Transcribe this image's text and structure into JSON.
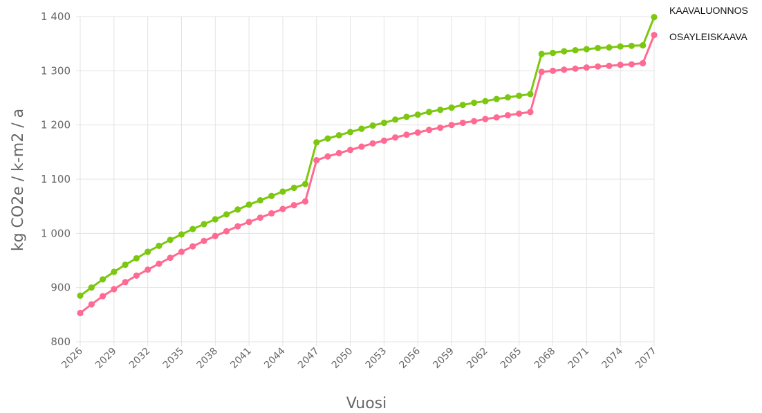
{
  "chart_data": {
    "type": "line",
    "title": "",
    "xlabel": "Vuosi",
    "ylabel": "kg CO2e / k-m2 / a",
    "x": [
      2026,
      2027,
      2028,
      2029,
      2030,
      2031,
      2032,
      2033,
      2034,
      2035,
      2036,
      2037,
      2038,
      2039,
      2040,
      2041,
      2042,
      2043,
      2044,
      2045,
      2046,
      2047,
      2048,
      2049,
      2050,
      2051,
      2052,
      2053,
      2054,
      2055,
      2056,
      2057,
      2058,
      2059,
      2060,
      2061,
      2062,
      2063,
      2064,
      2065,
      2066,
      2067,
      2068,
      2069,
      2070,
      2071,
      2072,
      2073,
      2074,
      2075,
      2076,
      2077
    ],
    "x_tick_labels": [
      "2026",
      "2029",
      "2032",
      "2035",
      "2038",
      "2041",
      "2044",
      "2047",
      "2050",
      "2053",
      "2056",
      "2059",
      "2062",
      "2065",
      "2068",
      "2071",
      "2074",
      "2077"
    ],
    "y_tick_labels": [
      "800",
      "900",
      "1 000",
      "1 100",
      "1 200",
      "1 300",
      "1 400"
    ],
    "ylim": [
      800,
      1400
    ],
    "grid": true,
    "legend_position": "right",
    "series": [
      {
        "name": "KAAVALUONNOS",
        "color": "#7cc70f",
        "values": [
          885,
          900,
          915,
          929,
          942,
          954,
          966,
          977,
          988,
          998,
          1008,
          1017,
          1026,
          1035,
          1044,
          1053,
          1061,
          1069,
          1077,
          1084,
          1091,
          1168,
          1175,
          1181,
          1187,
          1193,
          1199,
          1204,
          1210,
          1215,
          1219,
          1224,
          1228,
          1232,
          1237,
          1241,
          1244,
          1248,
          1251,
          1254,
          1257,
          1331,
          1333,
          1336,
          1338,
          1340,
          1342,
          1343,
          1345,
          1346,
          1347,
          1399
        ]
      },
      {
        "name": "OSAYLEISKAAVA",
        "color": "#ff6a92",
        "values": [
          853,
          869,
          884,
          897,
          910,
          922,
          933,
          944,
          955,
          966,
          976,
          986,
          995,
          1004,
          1013,
          1021,
          1029,
          1037,
          1045,
          1052,
          1059,
          1135,
          1142,
          1148,
          1154,
          1160,
          1166,
          1171,
          1177,
          1182,
          1186,
          1191,
          1195,
          1200,
          1204,
          1207,
          1211,
          1214,
          1218,
          1221,
          1224,
          1298,
          1300,
          1302,
          1304,
          1306,
          1308,
          1309,
          1311,
          1312,
          1314,
          1366
        ]
      }
    ]
  }
}
